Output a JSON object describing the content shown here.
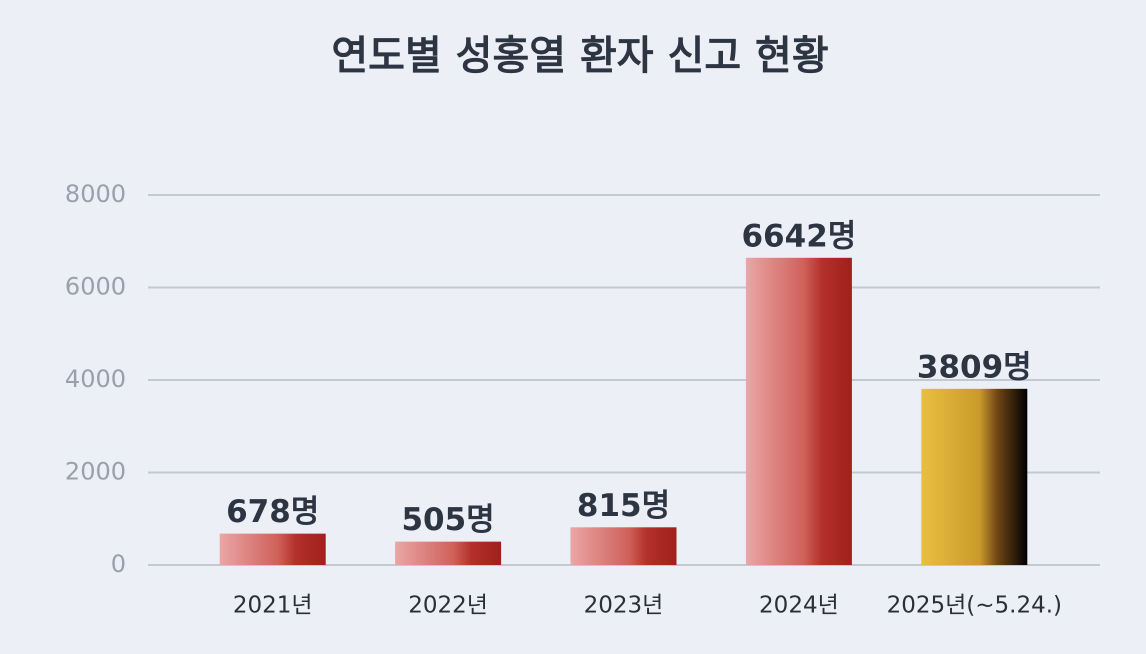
{
  "chart_data": {
    "type": "bar",
    "title": "연도별 성홍열 환자 신고 현황",
    "categories": [
      "2021년",
      "2022년",
      "2023년",
      "2024년",
      "2025년(~5.24.)"
    ],
    "values": [
      678,
      505,
      815,
      6642,
      3809
    ],
    "value_labels": [
      "678명",
      "505명",
      "815명",
      "6642명",
      "3809명"
    ],
    "colors": [
      [
        "#eaa6a6",
        "#d0605a",
        "#b3302b",
        "#a0201b"
      ],
      [
        "#eaa6a6",
        "#d0605a",
        "#b3302b",
        "#a0201b"
      ],
      [
        "#eaa6a6",
        "#d0605a",
        "#b3302b",
        "#a0201b"
      ],
      [
        "#eaa6a6",
        "#d0605a",
        "#b3302b",
        "#a0201b"
      ],
      [
        "#e8c040",
        "#c99a2a",
        "#6e4516",
        "#000000"
      ]
    ],
    "ylim": [
      0,
      8000
    ],
    "yticks": [
      0,
      2000,
      4000,
      6000,
      8000
    ],
    "grid": true
  }
}
